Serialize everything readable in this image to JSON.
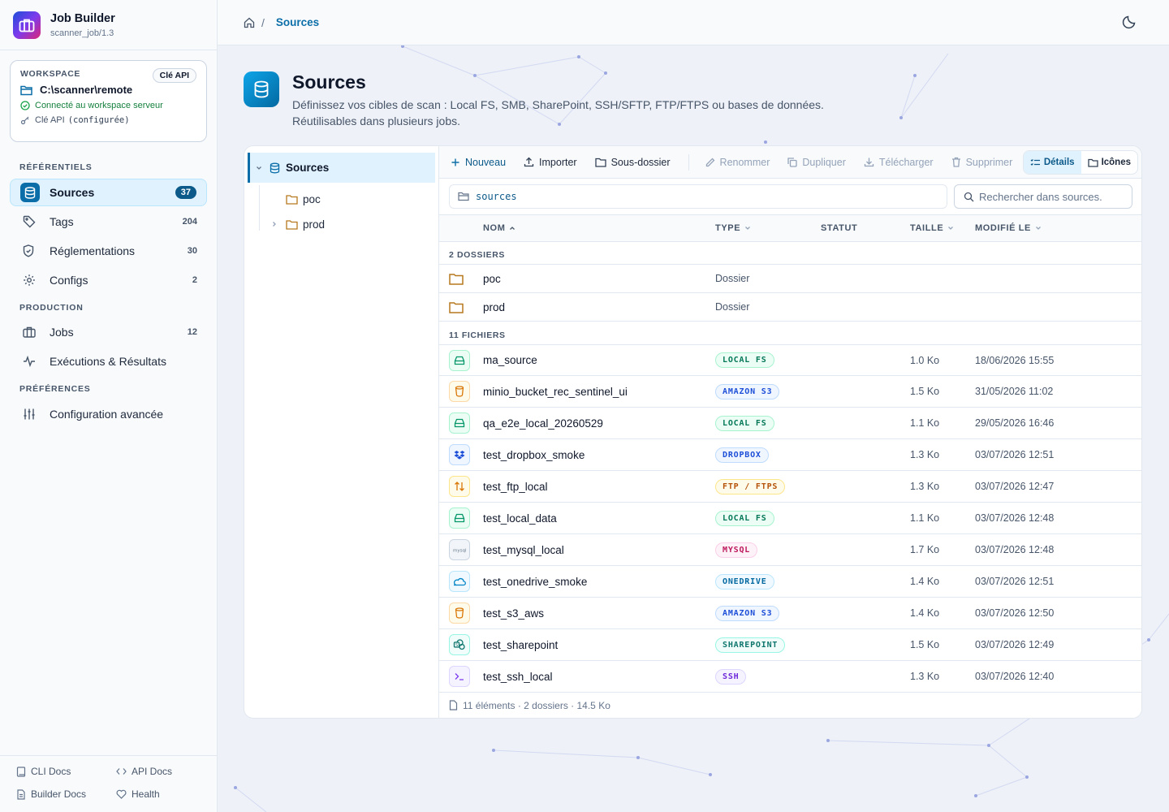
{
  "app": {
    "title": "Job Builder",
    "subtitle": "scanner_job/1.3"
  },
  "workspace": {
    "label": "WORKSPACE",
    "api_badge": "Clé API",
    "path": "C:\\scanner\\remote",
    "status": "Connecté au workspace serveur",
    "api_key_label": "Clé API",
    "api_key_value": "(configurée)"
  },
  "nav": {
    "sections": [
      "RÉFÉRENTIELS",
      "PRODUCTION",
      "PRÉFÉRENCES"
    ],
    "items": [
      {
        "label": "Sources",
        "count": "37",
        "icon": "database-icon"
      },
      {
        "label": "Tags",
        "count": "204",
        "icon": "tag-icon"
      },
      {
        "label": "Réglementations",
        "count": "30",
        "icon": "shield-icon"
      },
      {
        "label": "Configs",
        "count": "2",
        "icon": "gear-icon"
      },
      {
        "label": "Jobs",
        "count": "12",
        "icon": "briefcase-icon"
      },
      {
        "label": "Exécutions & Résultats",
        "count": "",
        "icon": "activity-icon"
      },
      {
        "label": "Configuration avancée",
        "count": "",
        "icon": "sliders-icon"
      }
    ]
  },
  "footer_links": [
    "CLI Docs",
    "API Docs",
    "Builder Docs",
    "Health"
  ],
  "breadcrumb": {
    "sep": "/",
    "current": "Sources"
  },
  "page": {
    "title": "Sources",
    "desc_line1": "Définissez vos cibles de scan : Local FS, SMB, SharePoint, SSH/SFTP, FTP/FTPS ou bases de données.",
    "desc_line2": "Réutilisables dans plusieurs jobs."
  },
  "tree": {
    "root": "Sources",
    "children": [
      "poc",
      "prod"
    ]
  },
  "toolbar": {
    "new": "Nouveau",
    "import": "Importer",
    "subfolder": "Sous-dossier",
    "rename": "Renommer",
    "duplicate": "Dupliquer",
    "download": "Télécharger",
    "delete": "Supprimer",
    "details": "Détails",
    "icons": "Icônes"
  },
  "path_value": "sources",
  "search_placeholder": "Rechercher dans sources.",
  "columns": {
    "name": "NOM",
    "type": "TYPE",
    "status": "STATUT",
    "size": "TAILLE",
    "modified": "MODIFIÉ LE"
  },
  "folders_label": "2 DOSSIERS",
  "folders": [
    {
      "name": "poc",
      "type": "Dossier"
    },
    {
      "name": "prod",
      "type": "Dossier"
    }
  ],
  "files_label": "11 FICHIERS",
  "files": [
    {
      "name": "ma_source",
      "badge": "LOCAL FS",
      "size": "1.0 Ko",
      "date": "18/06/2026 15:55",
      "kind": "local"
    },
    {
      "name": "minio_bucket_rec_sentinel_ui",
      "badge": "AMAZON S3",
      "size": "1.5 Ko",
      "date": "31/05/2026 11:02",
      "kind": "s3"
    },
    {
      "name": "qa_e2e_local_20260529",
      "badge": "LOCAL FS",
      "size": "1.1 Ko",
      "date": "29/05/2026 16:46",
      "kind": "local"
    },
    {
      "name": "test_dropbox_smoke",
      "badge": "DROPBOX",
      "size": "1.3 Ko",
      "date": "03/07/2026 12:51",
      "kind": "dropbox"
    },
    {
      "name": "test_ftp_local",
      "badge": "FTP / FTPS",
      "size": "1.3 Ko",
      "date": "03/07/2026 12:47",
      "kind": "ftp"
    },
    {
      "name": "test_local_data",
      "badge": "LOCAL FS",
      "size": "1.1 Ko",
      "date": "03/07/2026 12:48",
      "kind": "local"
    },
    {
      "name": "test_mysql_local",
      "badge": "MYSQL",
      "size": "1.7 Ko",
      "date": "03/07/2026 12:48",
      "kind": "mysql"
    },
    {
      "name": "test_onedrive_smoke",
      "badge": "ONEDRIVE",
      "size": "1.4 Ko",
      "date": "03/07/2026 12:51",
      "kind": "onedrive"
    },
    {
      "name": "test_s3_aws",
      "badge": "AMAZON S3",
      "size": "1.4 Ko",
      "date": "03/07/2026 12:50",
      "kind": "s3"
    },
    {
      "name": "test_sharepoint",
      "badge": "SHAREPOINT",
      "size": "1.5 Ko",
      "date": "03/07/2026 12:49",
      "kind": "sharepoint"
    },
    {
      "name": "test_ssh_local",
      "badge": "SSH",
      "size": "1.3 Ko",
      "date": "03/07/2026 12:40",
      "kind": "ssh"
    }
  ],
  "summary": "11 éléments · 2 dossiers · 14.5 Ko",
  "colors": {
    "accent": "#0c6ea8",
    "local": "#059669",
    "s3": "#b45309",
    "dropbox": "#1d4ed8",
    "ftp": "#b45309",
    "mysql": "#be185d",
    "onedrive": "#0369a1",
    "sharepoint": "#0f766e",
    "ssh": "#6d28d9"
  }
}
